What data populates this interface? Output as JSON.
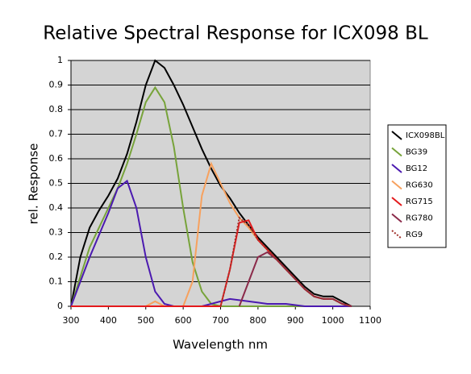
{
  "chart_data": {
    "type": "line",
    "title": "Relative Spectral Response for ICX098 BL",
    "x_label": "Wavelength nm",
    "y_label": "rel. Response",
    "x": [
      300,
      325,
      350,
      375,
      400,
      425,
      450,
      475,
      500,
      525,
      550,
      575,
      600,
      625,
      650,
      675,
      700,
      725,
      750,
      775,
      800,
      825,
      850,
      875,
      900,
      925,
      950,
      975,
      1000,
      1025,
      1050
    ],
    "series": [
      {
        "name": "ICX098BL",
        "color": "#000000",
        "values": [
          0,
          0.2,
          0.32,
          0.39,
          0.45,
          0.52,
          0.62,
          0.75,
          0.9,
          1.0,
          0.97,
          0.9,
          0.82,
          0.73,
          0.64,
          0.56,
          0.49,
          0.44,
          0.38,
          0.33,
          0.28,
          0.24,
          0.2,
          0.16,
          0.12,
          0.08,
          0.05,
          0.04,
          0.04,
          0.02,
          0
        ]
      },
      {
        "name": "BG39",
        "color": "#77a33a",
        "values": [
          0,
          0.12,
          0.24,
          0.32,
          0.4,
          0.48,
          0.58,
          0.7,
          0.83,
          0.89,
          0.83,
          0.65,
          0.4,
          0.18,
          0.06,
          0.01,
          0,
          0,
          0,
          0,
          0,
          0,
          0,
          0,
          0,
          0,
          0,
          0,
          0,
          0,
          0
        ]
      },
      {
        "name": "BG12",
        "color": "#4b1ab0",
        "values": [
          0,
          0.1,
          0.2,
          0.29,
          0.38,
          0.48,
          0.51,
          0.4,
          0.2,
          0.06,
          0.01,
          0,
          0,
          0,
          0,
          0.01,
          0.02,
          0.03,
          0.025,
          0.02,
          0.015,
          0.01,
          0.01,
          0.01,
          0.005,
          0,
          0,
          0,
          0,
          0,
          0
        ]
      },
      {
        "name": "RG630",
        "color": "#f7a15e",
        "values": [
          0,
          0,
          0,
          0,
          0,
          0,
          0,
          0,
          0,
          0.02,
          0,
          0,
          0,
          0.1,
          0.45,
          0.58,
          0.5,
          0.42,
          0.36,
          0.32,
          0.27,
          0.23,
          0.19,
          0.15,
          0.11,
          0.07,
          0.04,
          0.03,
          0.03,
          0.01,
          0
        ]
      },
      {
        "name": "RG715",
        "color": "#e31a1c",
        "values": [
          0,
          0,
          0,
          0,
          0,
          0,
          0,
          0,
          0,
          0,
          0,
          0,
          0,
          0,
          0,
          0,
          0,
          0.15,
          0.34,
          0.35,
          0.27,
          0.23,
          0.19,
          0.15,
          0.11,
          0.07,
          0.04,
          0.03,
          0.03,
          0.01,
          0
        ]
      },
      {
        "name": "RG780",
        "color": "#8b2a4a",
        "values": [
          null,
          null,
          null,
          null,
          null,
          null,
          null,
          null,
          null,
          null,
          null,
          null,
          null,
          null,
          null,
          null,
          null,
          null,
          0,
          0.1,
          0.2,
          0.22,
          0.19,
          0.15,
          0.11,
          0.07,
          0.04,
          0.03,
          0.03,
          0.01,
          0
        ]
      },
      {
        "name": "RG9",
        "color": "#a0302a",
        "dash": true,
        "values": [
          null,
          null,
          null,
          null,
          null,
          null,
          null,
          null,
          null,
          null,
          null,
          null,
          null,
          null,
          null,
          null,
          0,
          0.15,
          0.36,
          0.33,
          0.27,
          0.23,
          0.19,
          0.15,
          0.11,
          0.07,
          0.04,
          0.03,
          0.03,
          0.01,
          0
        ]
      }
    ],
    "xlim": [
      300,
      1100
    ],
    "xticks": [
      300,
      400,
      500,
      600,
      700,
      800,
      900,
      1000,
      1100
    ],
    "ylim": [
      0,
      1
    ],
    "yticks": [
      0,
      0.1,
      0.2,
      0.3,
      0.4,
      0.5,
      0.6,
      0.7,
      0.8,
      0.9,
      1
    ],
    "grid": true,
    "legend": "right"
  }
}
